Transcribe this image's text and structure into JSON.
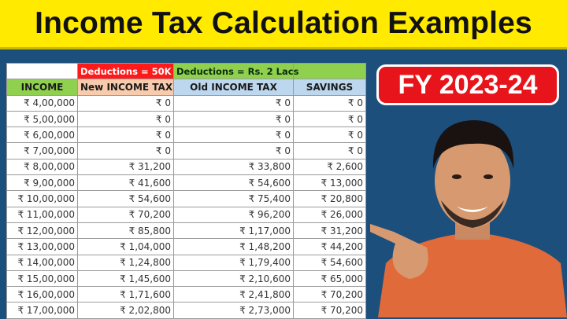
{
  "title": "Income Tax Calculation Examples",
  "badge": "FY 2023-24",
  "table": {
    "group_headers": [
      "",
      "Deductions = 50K",
      "Deductions = Rs. 2 Lacs",
      ""
    ],
    "columns": [
      "INCOME",
      "New INCOME TAX",
      "Old INCOME TAX",
      "SAVINGS"
    ],
    "rows": [
      [
        "₹ 4,00,000",
        "₹ 0",
        "₹ 0",
        "₹ 0"
      ],
      [
        "₹ 5,00,000",
        "₹ 0",
        "₹ 0",
        "₹ 0"
      ],
      [
        "₹ 6,00,000",
        "₹ 0",
        "₹ 0",
        "₹ 0"
      ],
      [
        "₹ 7,00,000",
        "₹ 0",
        "₹ 0",
        "₹ 0"
      ],
      [
        "₹ 8,00,000",
        "₹ 31,200",
        "₹ 33,800",
        "₹ 2,600"
      ],
      [
        "₹ 9,00,000",
        "₹ 41,600",
        "₹ 54,600",
        "₹ 13,000"
      ],
      [
        "₹ 10,00,000",
        "₹ 54,600",
        "₹ 75,400",
        "₹ 20,800"
      ],
      [
        "₹ 11,00,000",
        "₹ 70,200",
        "₹ 96,200",
        "₹ 26,000"
      ],
      [
        "₹ 12,00,000",
        "₹ 85,800",
        "₹ 1,17,000",
        "₹ 31,200"
      ],
      [
        "₹ 13,00,000",
        "₹ 1,04,000",
        "₹ 1,48,200",
        "₹ 44,200"
      ],
      [
        "₹ 14,00,000",
        "₹ 1,24,800",
        "₹ 1,79,400",
        "₹ 54,600"
      ],
      [
        "₹ 15,00,000",
        "₹ 1,45,600",
        "₹ 2,10,600",
        "₹ 65,000"
      ],
      [
        "₹ 16,00,000",
        "₹ 1,71,600",
        "₹ 2,41,800",
        "₹ 70,200"
      ],
      [
        "₹ 17,00,000",
        "₹ 2,02,800",
        "₹ 2,73,000",
        "₹ 70,200"
      ]
    ]
  },
  "colors": {
    "banner": "#ffea00",
    "background": "#1d4f7c",
    "badge": "#e8141b"
  }
}
